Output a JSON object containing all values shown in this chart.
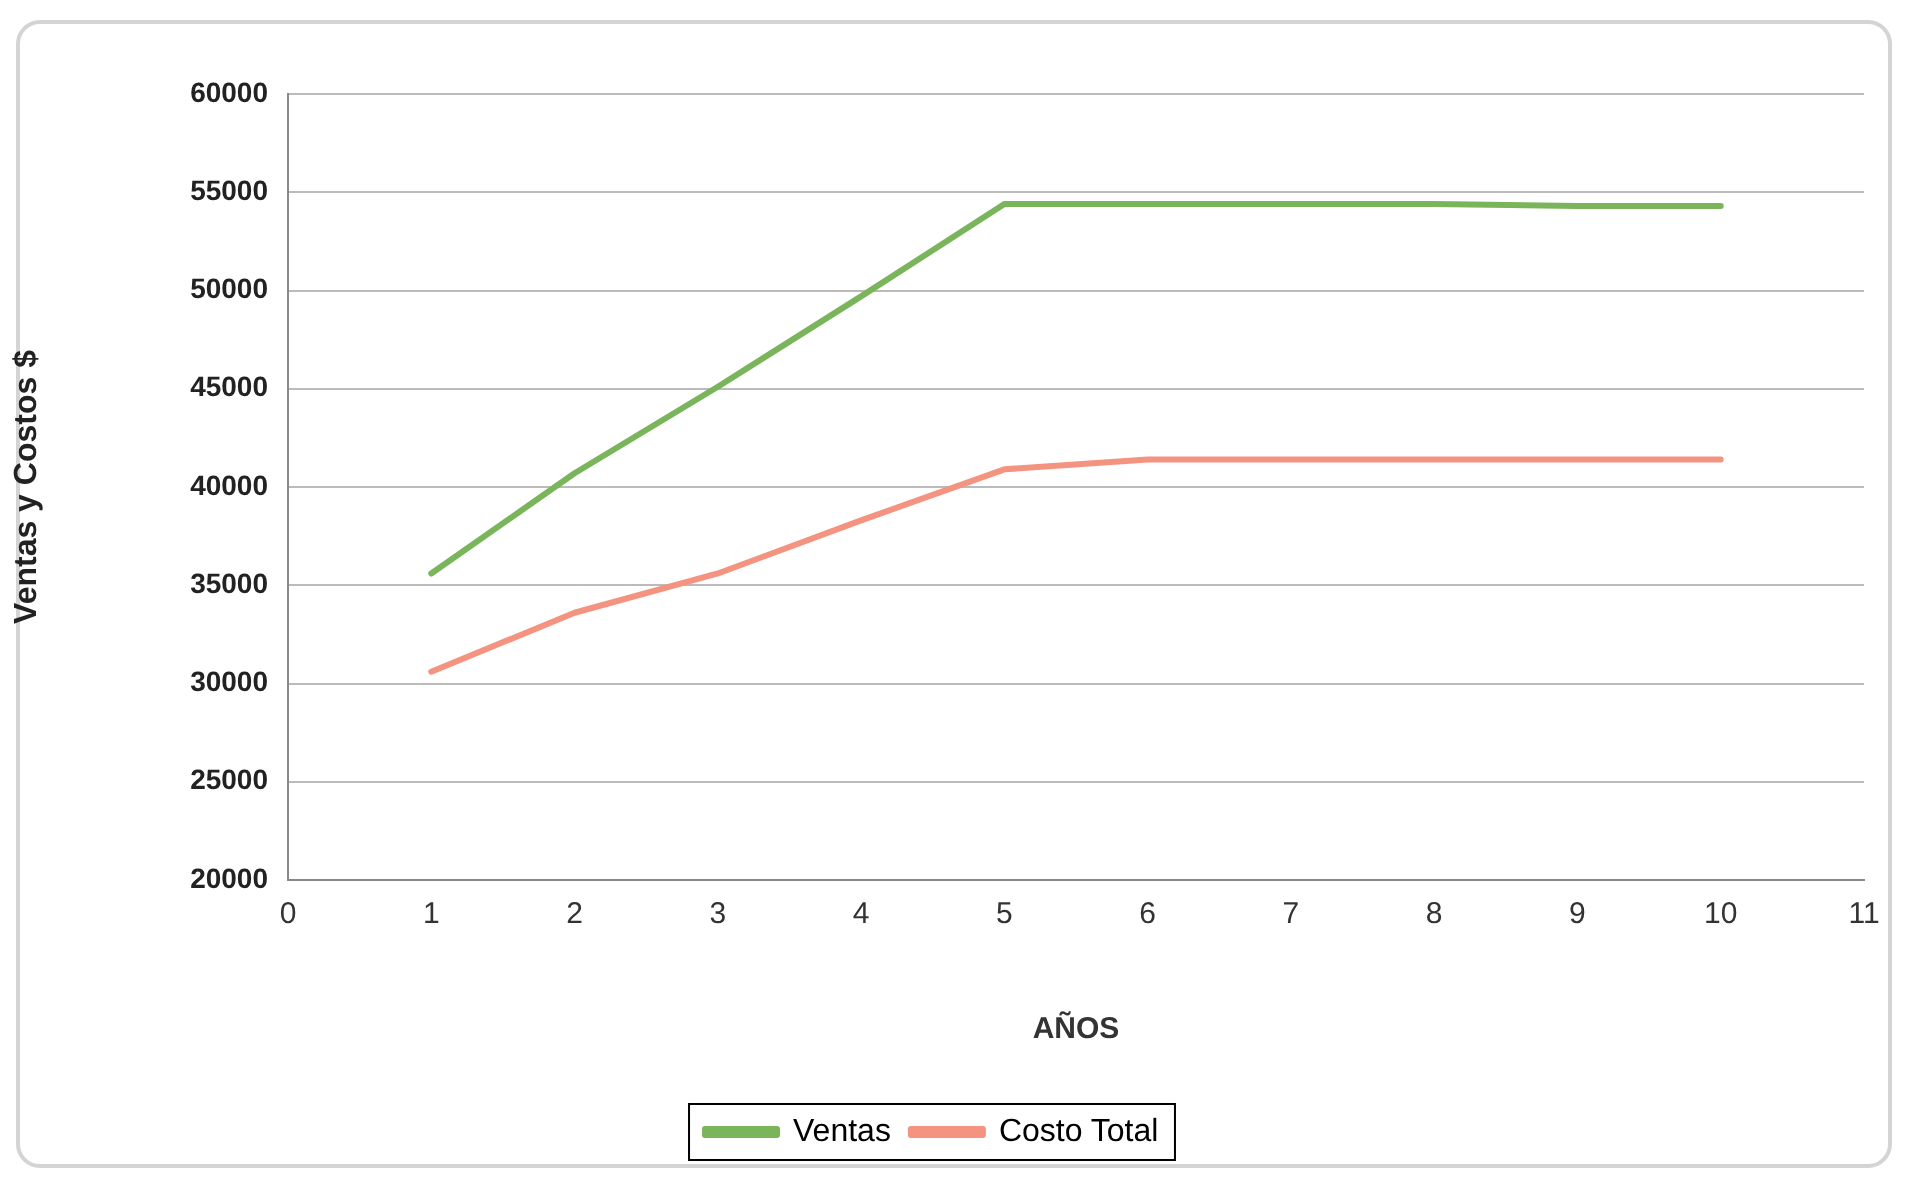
{
  "chart_data": {
    "type": "line",
    "xlabel": "AÑOS",
    "ylabel": "Ventas y Costos $",
    "x": [
      1,
      2,
      3,
      4,
      5,
      6,
      7,
      8,
      9,
      10
    ],
    "series": [
      {
        "name": "Ventas",
        "color": "#7ab55c",
        "values": [
          35600,
          40700,
          45100,
          49700,
          54400,
          54400,
          54400,
          54400,
          54300,
          54300
        ]
      },
      {
        "name": "Costo Total",
        "color": "#f49380",
        "values": [
          30600,
          33600,
          35600,
          38300,
          40900,
          41400,
          41400,
          41400,
          41400,
          41400
        ]
      }
    ],
    "xlim": [
      0,
      11
    ],
    "xticks": [
      0,
      1,
      2,
      3,
      4,
      5,
      6,
      7,
      8,
      9,
      10,
      11
    ],
    "ylim": [
      20000,
      60000
    ],
    "yticks": [
      20000,
      25000,
      30000,
      35000,
      40000,
      45000,
      50000,
      55000,
      60000
    ],
    "grid": "y",
    "legend": "bottom",
    "marker": "none",
    "line_style": "solid"
  }
}
